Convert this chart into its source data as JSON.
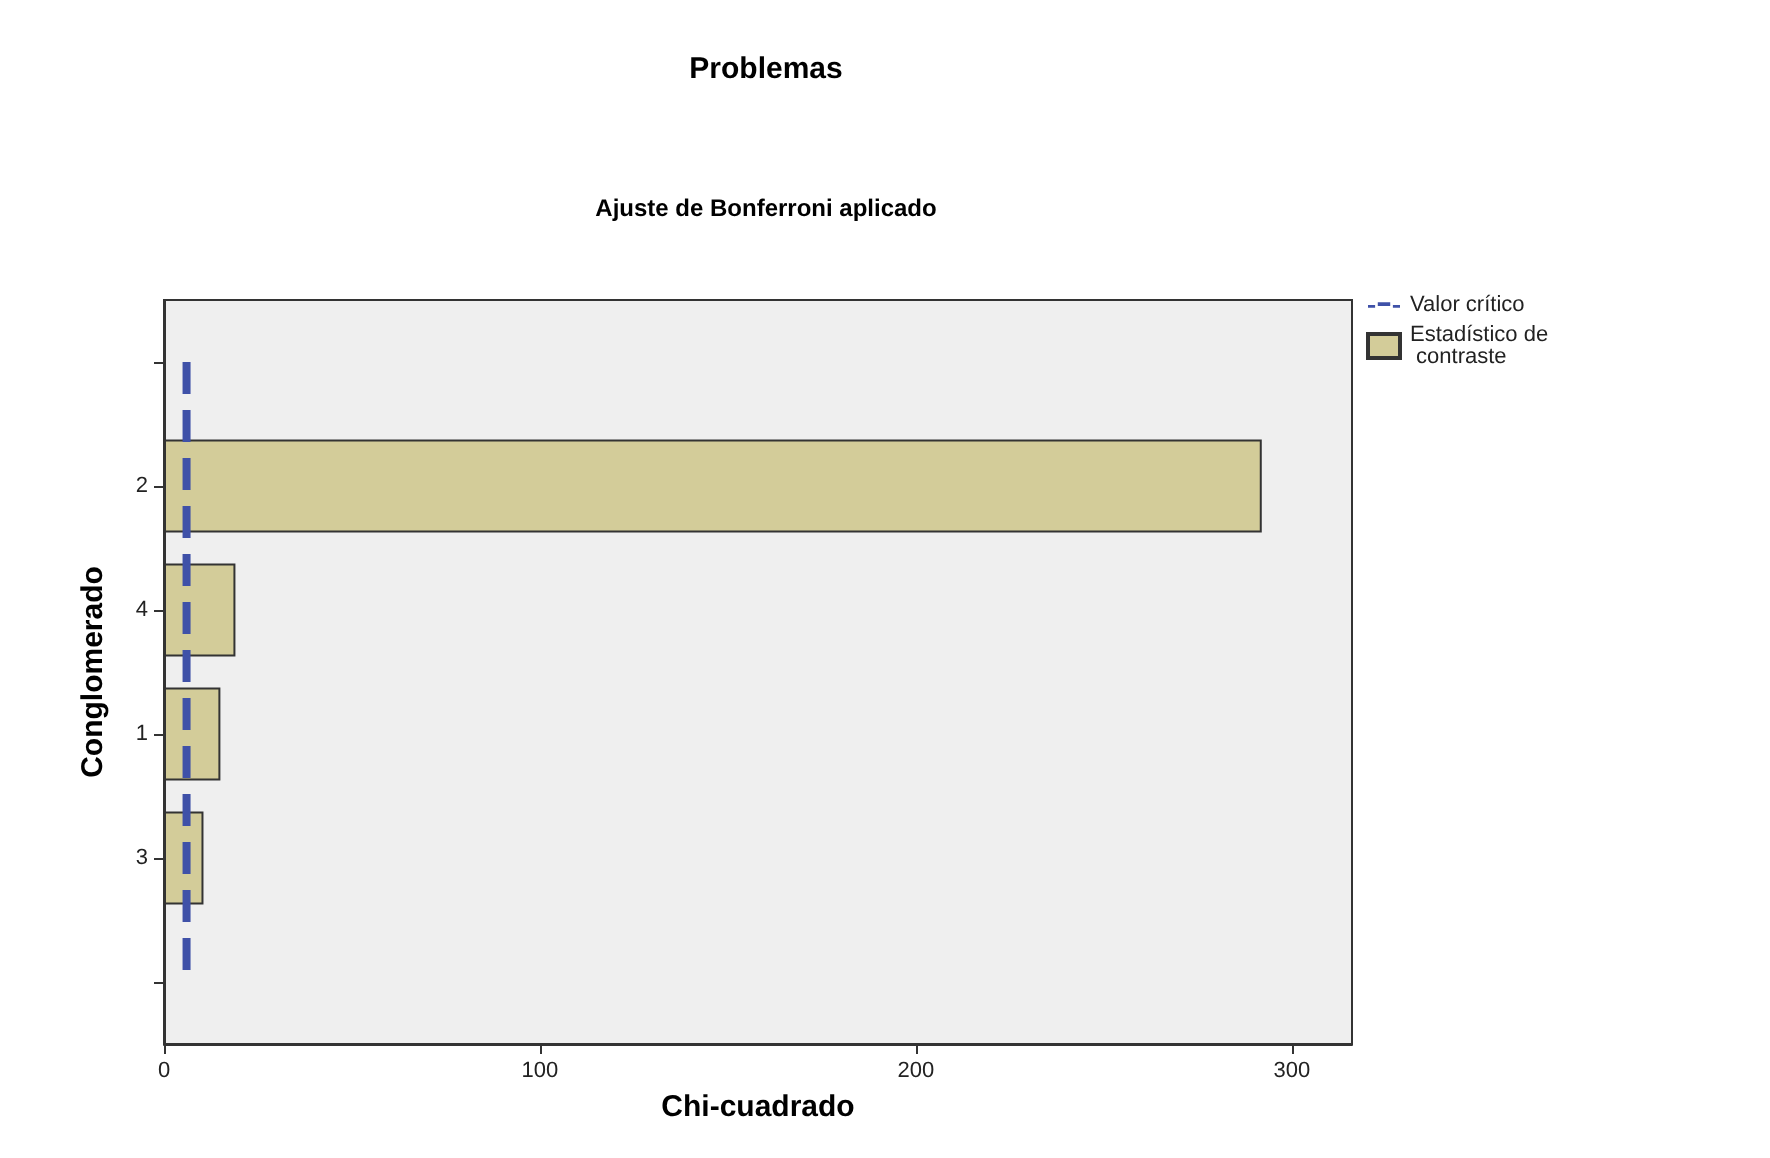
{
  "chart_data": {
    "type": "bar",
    "orientation": "horizontal",
    "title": "Problemas",
    "subtitle": "Ajuste de Bonferroni aplicado",
    "xlabel": "Chi-cuadrado",
    "ylabel": "Conglomerado",
    "categories": [
      null,
      "2",
      "4",
      "1",
      "3",
      null
    ],
    "series": [
      {
        "name": "Estadístico de contraste",
        "color": "#d3cc99",
        "values": [
          null,
          292,
          19,
          15,
          10.5,
          null
        ]
      }
    ],
    "xlim": [
      0,
      316
    ],
    "xticks": [
      0,
      100,
      200,
      300
    ],
    "ref_lines": [
      {
        "axis": "x",
        "value": 6,
        "label": "Valor crítico",
        "color": "#3f51a8",
        "line_style": "dashed"
      }
    ],
    "grid": false,
    "legend": "top right"
  }
}
